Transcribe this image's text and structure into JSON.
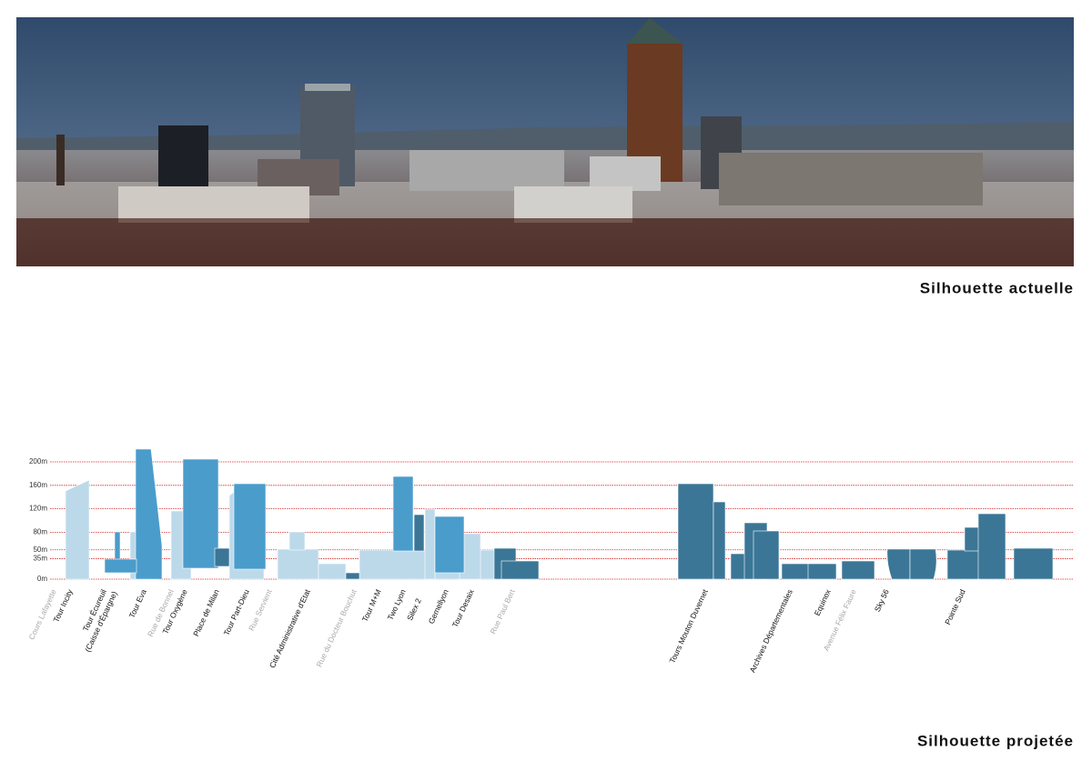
{
  "photo_caption": "Silhouette actuelle",
  "diagram_caption": "Silhouette projetée",
  "levels": [
    {
      "value": 200,
      "label": "200m"
    },
    {
      "value": 160,
      "label": "160m"
    },
    {
      "value": 120,
      "label": "120m"
    },
    {
      "value": 80,
      "label": "80m"
    },
    {
      "value": 50,
      "label": "50m"
    },
    {
      "value": 35,
      "label": "35m"
    },
    {
      "value": 0,
      "label": "0m"
    }
  ],
  "labels": [
    "Cours Lafayette",
    "Tour Incity",
    "Tour Écureuil",
    "(Caisse d'Épargne)",
    "Tour Eva",
    "Rue de Bonnel",
    "Tour Oxygène",
    "Place de Milan",
    "Tour Part-Dieu",
    "Rue Servient",
    "Cité Administrative d'Etat",
    "Rue du Docteur Bouchut",
    "Tour M+M",
    "Two Lyon",
    "Silex 2",
    "Gemellyon",
    "Tour Desaix",
    "Rue Paul Bert",
    "Tours Mouton Duvernet",
    "Archives Départementales",
    "Equinox",
    "Avenue Félix Faure",
    "Sky 56",
    "Pointe Sud"
  ]
}
